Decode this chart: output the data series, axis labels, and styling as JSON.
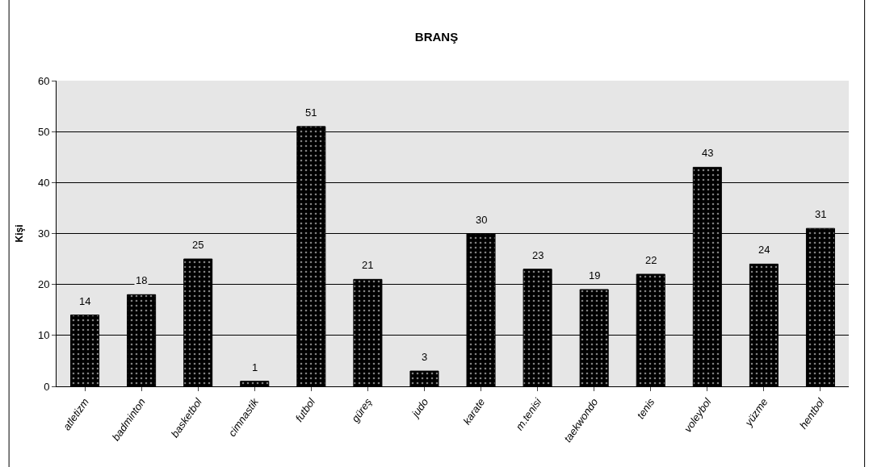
{
  "chart_data": {
    "type": "bar",
    "title": "BRANŞ",
    "ylabel": "Kişi",
    "categories": [
      "atletizm",
      "badminton",
      "basketbol",
      "cimnastik",
      "futbol",
      "güreş",
      "judo",
      "karate",
      "m.tenisi",
      "taekwondo",
      "tenis",
      "voleybol",
      "yüzme",
      "hentbol"
    ],
    "values": [
      14,
      18,
      25,
      1,
      51,
      21,
      3,
      30,
      23,
      19,
      22,
      43,
      24,
      31
    ],
    "color": "#000000",
    "ylim": [
      0,
      60
    ],
    "yticks": [
      0,
      10,
      20,
      30,
      40,
      50,
      60
    ],
    "grid": "y",
    "data_labels": true,
    "legend": false
  }
}
